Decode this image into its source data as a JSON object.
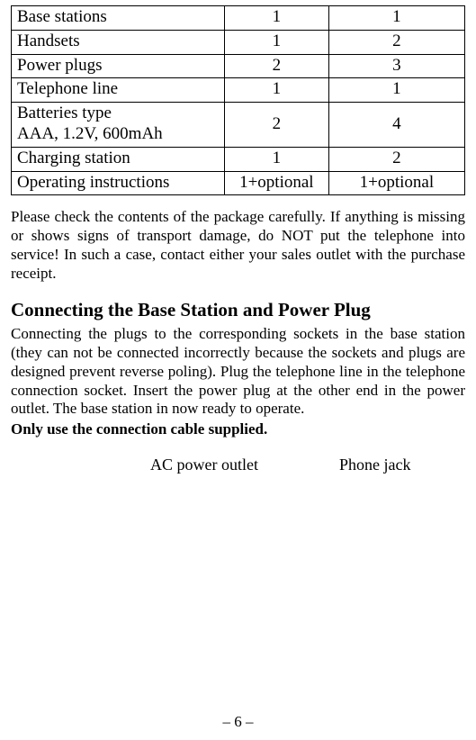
{
  "table": {
    "rows": [
      {
        "item": "Base stations",
        "qty1": "1",
        "qty2": "1"
      },
      {
        "item": "Handsets",
        "qty1": "1",
        "qty2": "2"
      },
      {
        "item": "Power plugs",
        "qty1": "2",
        "qty2": "3"
      },
      {
        "item": "Telephone line",
        "qty1": "1",
        "qty2": "1"
      },
      {
        "item": "Batteries type\nAAA, 1.2V, 600mAh",
        "qty1": "2",
        "qty2": "4"
      },
      {
        "item": "Charging station",
        "qty1": "1",
        "qty2": "2"
      },
      {
        "item": "Operating instructions",
        "qty1": "1+optional",
        "qty2": "1+optional"
      }
    ],
    "border_color": "#000000",
    "font_size": 19
  },
  "paragraph1": "Please check the contents of the package carefully. If anything is missing or shows signs of transport damage, do NOT put the telephone into service! In such a case, contact either your sales outlet with the purchase receipt.",
  "heading": "Connecting the Base Station and Power Plug",
  "paragraph2": "Connecting the plugs to the corresponding sockets in the base station (they can not be connected incorrectly because the sockets and plugs are designed prevent reverse poling). Plug the telephone line in the telephone connection socket. Insert the power plug at the other end in the power outlet. The base station in now ready to operate.",
  "bold_line": "Only use the connection cable supplied.",
  "labels": {
    "ac": "AC power outlet",
    "phone": "Phone jack"
  },
  "page_number": "– 6 –",
  "colors": {
    "background": "#ffffff",
    "text": "#000000",
    "border": "#000000"
  },
  "typography": {
    "body_font": "Times New Roman",
    "body_size_pt": 12,
    "heading_size_pt": 15,
    "heading_weight": "bold"
  }
}
